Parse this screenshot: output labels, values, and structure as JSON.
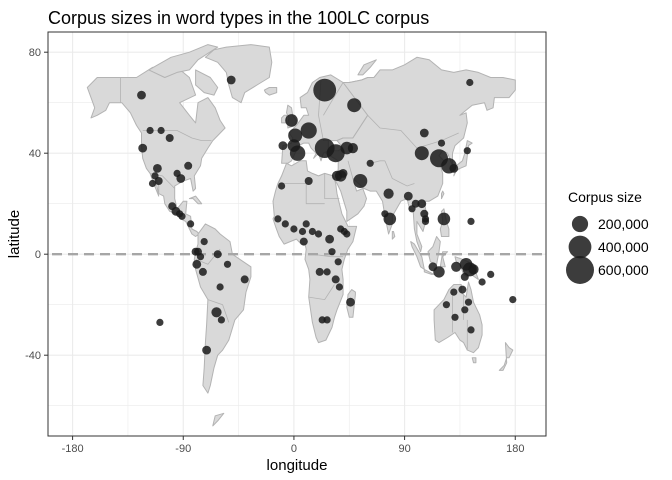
{
  "chart_data": {
    "type": "scatter",
    "title": "Corpus sizes in word types in the 100LC corpus",
    "xlabel": "longitude",
    "ylabel": "latitude",
    "xlim": [
      -200,
      205
    ],
    "ylim": [
      -72,
      88
    ],
    "x_ticks": [
      -180,
      -90,
      0,
      90,
      180
    ],
    "y_ticks": [
      -40,
      0,
      40,
      80
    ],
    "x_tick_labels": [
      "-180",
      "-90",
      "0",
      "90",
      "180"
    ],
    "y_tick_labels": [
      "-40",
      "0",
      "40",
      "80"
    ],
    "background_map": "world country outlines, light grey",
    "grid": true,
    "equator_line": "dashed grey line at latitude 0",
    "legend": {
      "title": "Corpus size",
      "placement": "right",
      "entries": [
        {
          "label": "200,000",
          "size": 200000
        },
        {
          "label": "400,000",
          "size": 400000
        },
        {
          "label": "600,000",
          "size": 600000
        }
      ]
    },
    "points": [
      {
        "x": -124,
        "y": 63,
        "size": 60000
      },
      {
        "x": -117,
        "y": 49,
        "size": 40000
      },
      {
        "x": -108,
        "y": 49,
        "size": 40000
      },
      {
        "x": -123,
        "y": 42,
        "size": 60000
      },
      {
        "x": -101,
        "y": 46,
        "size": 50000
      },
      {
        "x": -86,
        "y": 35,
        "size": 50000
      },
      {
        "x": -95,
        "y": 32,
        "size": 40000
      },
      {
        "x": -111,
        "y": 34,
        "size": 60000
      },
      {
        "x": -113,
        "y": 31,
        "size": 40000
      },
      {
        "x": -110,
        "y": 29,
        "size": 50000
      },
      {
        "x": -115,
        "y": 28,
        "size": 40000
      },
      {
        "x": -92,
        "y": 30,
        "size": 60000
      },
      {
        "x": -99,
        "y": 19,
        "size": 50000
      },
      {
        "x": -96,
        "y": 17,
        "size": 60000
      },
      {
        "x": -93,
        "y": 16,
        "size": 40000
      },
      {
        "x": -91,
        "y": 15,
        "size": 40000
      },
      {
        "x": -84,
        "y": 12,
        "size": 40000
      },
      {
        "x": -73,
        "y": 5,
        "size": 40000
      },
      {
        "x": -78,
        "y": 1,
        "size": 50000
      },
      {
        "x": -80,
        "y": 1,
        "size": 50000
      },
      {
        "x": -76,
        "y": -1,
        "size": 40000
      },
      {
        "x": -79,
        "y": -4,
        "size": 60000
      },
      {
        "x": -74,
        "y": -7,
        "size": 50000
      },
      {
        "x": -62,
        "y": 0,
        "size": 50000
      },
      {
        "x": -54,
        "y": -4,
        "size": 40000
      },
      {
        "x": -40,
        "y": -10,
        "size": 50000
      },
      {
        "x": -60,
        "y": -13,
        "size": 40000
      },
      {
        "x": -63,
        "y": -23,
        "size": 80000
      },
      {
        "x": -59,
        "y": -26,
        "size": 40000
      },
      {
        "x": -71,
        "y": -38,
        "size": 60000
      },
      {
        "x": -109,
        "y": -27,
        "size": 40000
      },
      {
        "x": -51,
        "y": 69,
        "size": 60000
      },
      {
        "x": -9,
        "y": 43,
        "size": 60000
      },
      {
        "x": -2,
        "y": 53,
        "size": 120000
      },
      {
        "x": 1,
        "y": 47,
        "size": 150000
      },
      {
        "x": 0,
        "y": 43,
        "size": 120000
      },
      {
        "x": 3,
        "y": 40,
        "size": 180000
      },
      {
        "x": 12,
        "y": 49,
        "size": 200000
      },
      {
        "x": 25,
        "y": 65,
        "size": 400000
      },
      {
        "x": 25,
        "y": 42,
        "size": 300000
      },
      {
        "x": 34,
        "y": 40,
        "size": 250000
      },
      {
        "x": 49,
        "y": 59,
        "size": 150000
      },
      {
        "x": 43,
        "y": 42,
        "size": 120000
      },
      {
        "x": 48,
        "y": 42,
        "size": 80000
      },
      {
        "x": 35,
        "y": 31,
        "size": 80000
      },
      {
        "x": 38,
        "y": 31,
        "size": 100000
      },
      {
        "x": 40,
        "y": 32,
        "size": 60000
      },
      {
        "x": 54,
        "y": 29,
        "size": 150000
      },
      {
        "x": 62,
        "y": 36,
        "size": 40000
      },
      {
        "x": 77,
        "y": 24,
        "size": 80000
      },
      {
        "x": 74,
        "y": 16,
        "size": 40000
      },
      {
        "x": 78,
        "y": 14,
        "size": 120000
      },
      {
        "x": 93,
        "y": 23,
        "size": 60000
      },
      {
        "x": 99,
        "y": 20,
        "size": 50000
      },
      {
        "x": 96,
        "y": 18,
        "size": 40000
      },
      {
        "x": 104,
        "y": 20,
        "size": 60000
      },
      {
        "x": 106,
        "y": 16,
        "size": 50000
      },
      {
        "x": 107,
        "y": 14,
        "size": 40000
      },
      {
        "x": 122,
        "y": 14,
        "size": 120000
      },
      {
        "x": 107,
        "y": 13,
        "size": 40000
      },
      {
        "x": 104,
        "y": 40,
        "size": 150000
      },
      {
        "x": 118,
        "y": 38,
        "size": 250000
      },
      {
        "x": 126,
        "y": 35,
        "size": 180000
      },
      {
        "x": 130,
        "y": 34,
        "size": 60000
      },
      {
        "x": 106,
        "y": 48,
        "size": 60000
      },
      {
        "x": 120,
        "y": 44,
        "size": 40000
      },
      {
        "x": 141,
        "y": 41,
        "size": 40000
      },
      {
        "x": 143,
        "y": 68,
        "size": 40000
      },
      {
        "x": 12,
        "y": 29,
        "size": 50000
      },
      {
        "x": -10,
        "y": 27,
        "size": 40000
      },
      {
        "x": -7,
        "y": 12,
        "size": 40000
      },
      {
        "x": -13,
        "y": 14,
        "size": 40000
      },
      {
        "x": 0,
        "y": 10,
        "size": 40000
      },
      {
        "x": 7,
        "y": 9,
        "size": 40000
      },
      {
        "x": 10,
        "y": 12,
        "size": 40000
      },
      {
        "x": 8,
        "y": 5,
        "size": 50000
      },
      {
        "x": 15,
        "y": 9,
        "size": 40000
      },
      {
        "x": 20,
        "y": 8,
        "size": 40000
      },
      {
        "x": 29,
        "y": 6,
        "size": 60000
      },
      {
        "x": 38,
        "y": 10,
        "size": 40000
      },
      {
        "x": 41,
        "y": 9,
        "size": 40000
      },
      {
        "x": 31,
        "y": 1,
        "size": 40000
      },
      {
        "x": 43,
        "y": 8,
        "size": 40000
      },
      {
        "x": 21,
        "y": -7,
        "size": 50000
      },
      {
        "x": 27,
        "y": -7,
        "size": 40000
      },
      {
        "x": 36,
        "y": -3,
        "size": 40000
      },
      {
        "x": 37,
        "y": -13,
        "size": 40000
      },
      {
        "x": 34,
        "y": -10,
        "size": 50000
      },
      {
        "x": 23,
        "y": -26,
        "size": 40000
      },
      {
        "x": 27,
        "y": -26,
        "size": 40000
      },
      {
        "x": 46,
        "y": -19,
        "size": 60000
      },
      {
        "x": 118,
        "y": -7,
        "size": 100000
      },
      {
        "x": 113,
        "y": -5,
        "size": 60000
      },
      {
        "x": 132,
        "y": -5,
        "size": 80000
      },
      {
        "x": 140,
        "y": -4,
        "size": 120000
      },
      {
        "x": 143,
        "y": -6,
        "size": 150000
      },
      {
        "x": 146,
        "y": -6,
        "size": 80000
      },
      {
        "x": 139,
        "y": -9,
        "size": 50000
      },
      {
        "x": 153,
        "y": -11,
        "size": 40000
      },
      {
        "x": 130,
        "y": -15,
        "size": 40000
      },
      {
        "x": 137,
        "y": -14,
        "size": 50000
      },
      {
        "x": 124,
        "y": -20,
        "size": 40000
      },
      {
        "x": 139,
        "y": -22,
        "size": 40000
      },
      {
        "x": 131,
        "y": -25,
        "size": 40000
      },
      {
        "x": 144,
        "y": -30,
        "size": 40000
      },
      {
        "x": 142,
        "y": -19,
        "size": 40000
      },
      {
        "x": 160,
        "y": -8,
        "size": 40000
      },
      {
        "x": 144,
        "y": 13,
        "size": 40000
      },
      {
        "x": 178,
        "y": -18,
        "size": 40000
      }
    ]
  },
  "colors": {
    "land": "#d9d9d9",
    "border": "#b3b3b3",
    "point": "#1a1a1a",
    "grid": "#ebebeb",
    "panel_border": "#333333",
    "equator": "#a6a6a6"
  }
}
